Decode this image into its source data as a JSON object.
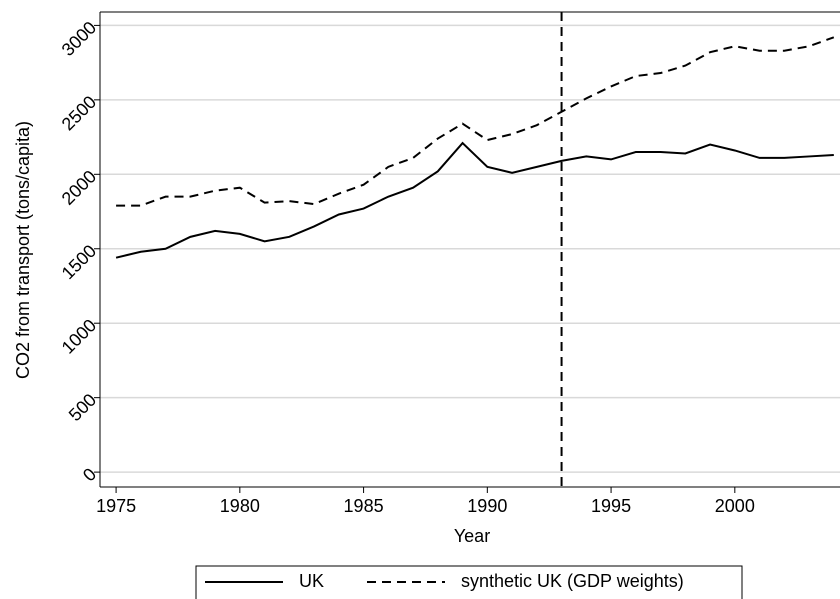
{
  "chart_data": {
    "type": "line",
    "xlabel": "Year",
    "ylabel": "CO2 from transport (tons/capita)",
    "x": [
      1975,
      1976,
      1977,
      1978,
      1979,
      1980,
      1981,
      1982,
      1983,
      1984,
      1985,
      1986,
      1987,
      1988,
      1989,
      1990,
      1991,
      1992,
      1993,
      1994,
      1995,
      1996,
      1997,
      1998,
      1999,
      2000,
      2001,
      2002,
      2003,
      2004
    ],
    "series": [
      {
        "name": "UK",
        "color": "#000000",
        "dash": "solid",
        "values": [
          1440,
          1480,
          1500,
          1580,
          1620,
          1600,
          1550,
          1580,
          1650,
          1730,
          1770,
          1850,
          1910,
          2020,
          2210,
          2050,
          2010,
          2050,
          2090,
          2120,
          2100,
          2150,
          2150,
          2140,
          2200,
          2160,
          2110,
          2110,
          2120,
          2130
        ]
      },
      {
        "name": "synthetic UK (GDP weights)",
        "color": "#000000",
        "dash": "dashed",
        "values": [
          1790,
          1790,
          1850,
          1850,
          1890,
          1910,
          1810,
          1820,
          1800,
          1870,
          1930,
          2050,
          2110,
          2240,
          2340,
          2230,
          2270,
          2330,
          2420,
          2510,
          2590,
          2660,
          2680,
          2730,
          2820,
          2860,
          2830,
          2830,
          2860,
          2920
        ]
      }
    ],
    "vline": 1993,
    "xlim": [
      1974.35,
      2004.25
    ],
    "xticks": [
      1975,
      1980,
      1985,
      1990,
      1995,
      2000
    ],
    "ylim": [
      -100,
      3090
    ],
    "yticks": [
      0,
      500,
      1000,
      1500,
      2000,
      2500,
      3000
    ],
    "grid": true,
    "legend": "bottom"
  }
}
